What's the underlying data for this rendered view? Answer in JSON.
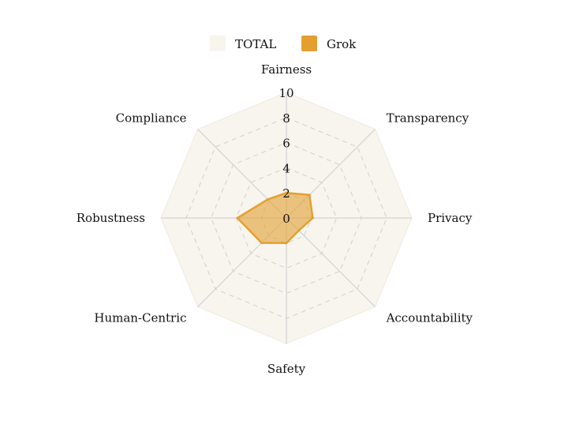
{
  "chart_data": {
    "type": "radar",
    "axes": [
      "Fairness",
      "Transparency",
      "Privacy",
      "Accountability",
      "Safety",
      "Human-Centric",
      "Robustness",
      "Compliance"
    ],
    "ticks": [
      "0",
      "2",
      "4",
      "6",
      "8",
      "10"
    ],
    "range": [
      0,
      10
    ],
    "grid": true,
    "legend_position": "top-center",
    "series": [
      {
        "name": "TOTAL",
        "values": [
          10,
          10,
          10,
          10,
          10,
          10,
          10,
          10
        ],
        "color": "#f8f5ef"
      },
      {
        "name": "Grok",
        "values": [
          2.0,
          2.6,
          2.1,
          1.4,
          2.0,
          2.8,
          3.9,
          2.1
        ],
        "color": "#e3a030"
      }
    ]
  }
}
